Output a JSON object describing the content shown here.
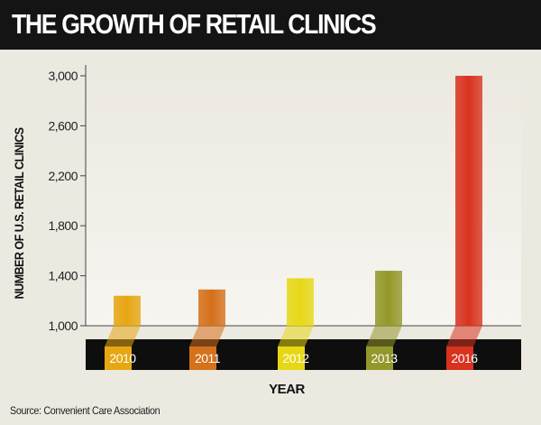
{
  "header": {
    "title": "THE GROWTH OF RETAIL CLINICS"
  },
  "footer": {
    "source": "Source: Convenient Care Association"
  },
  "colors": {
    "background": "#ece9e1",
    "title_bar": "#141414",
    "baseline_band": "#0e0e0e",
    "bar_2010": "#e7a612",
    "bar_2011": "#d5701b",
    "bar_2012": "#e7d816",
    "bar_2013": "#93982a",
    "bar_2016": "#d8331f"
  },
  "chart_data": {
    "type": "bar",
    "title": "",
    "xlabel": "YEAR",
    "ylabel": "NUMBER OF U.S. RETAIL CLINICS",
    "categories": [
      "2010",
      "2011",
      "2012",
      "2013",
      "2016"
    ],
    "values": [
      1240,
      1290,
      1380,
      1440,
      3000
    ],
    "ylim": [
      1000,
      3000
    ],
    "yticks": [
      "1,000",
      "1,400",
      "1,800",
      "2,200",
      "2,600",
      "3,000"
    ],
    "legend": "none",
    "grid": false
  }
}
